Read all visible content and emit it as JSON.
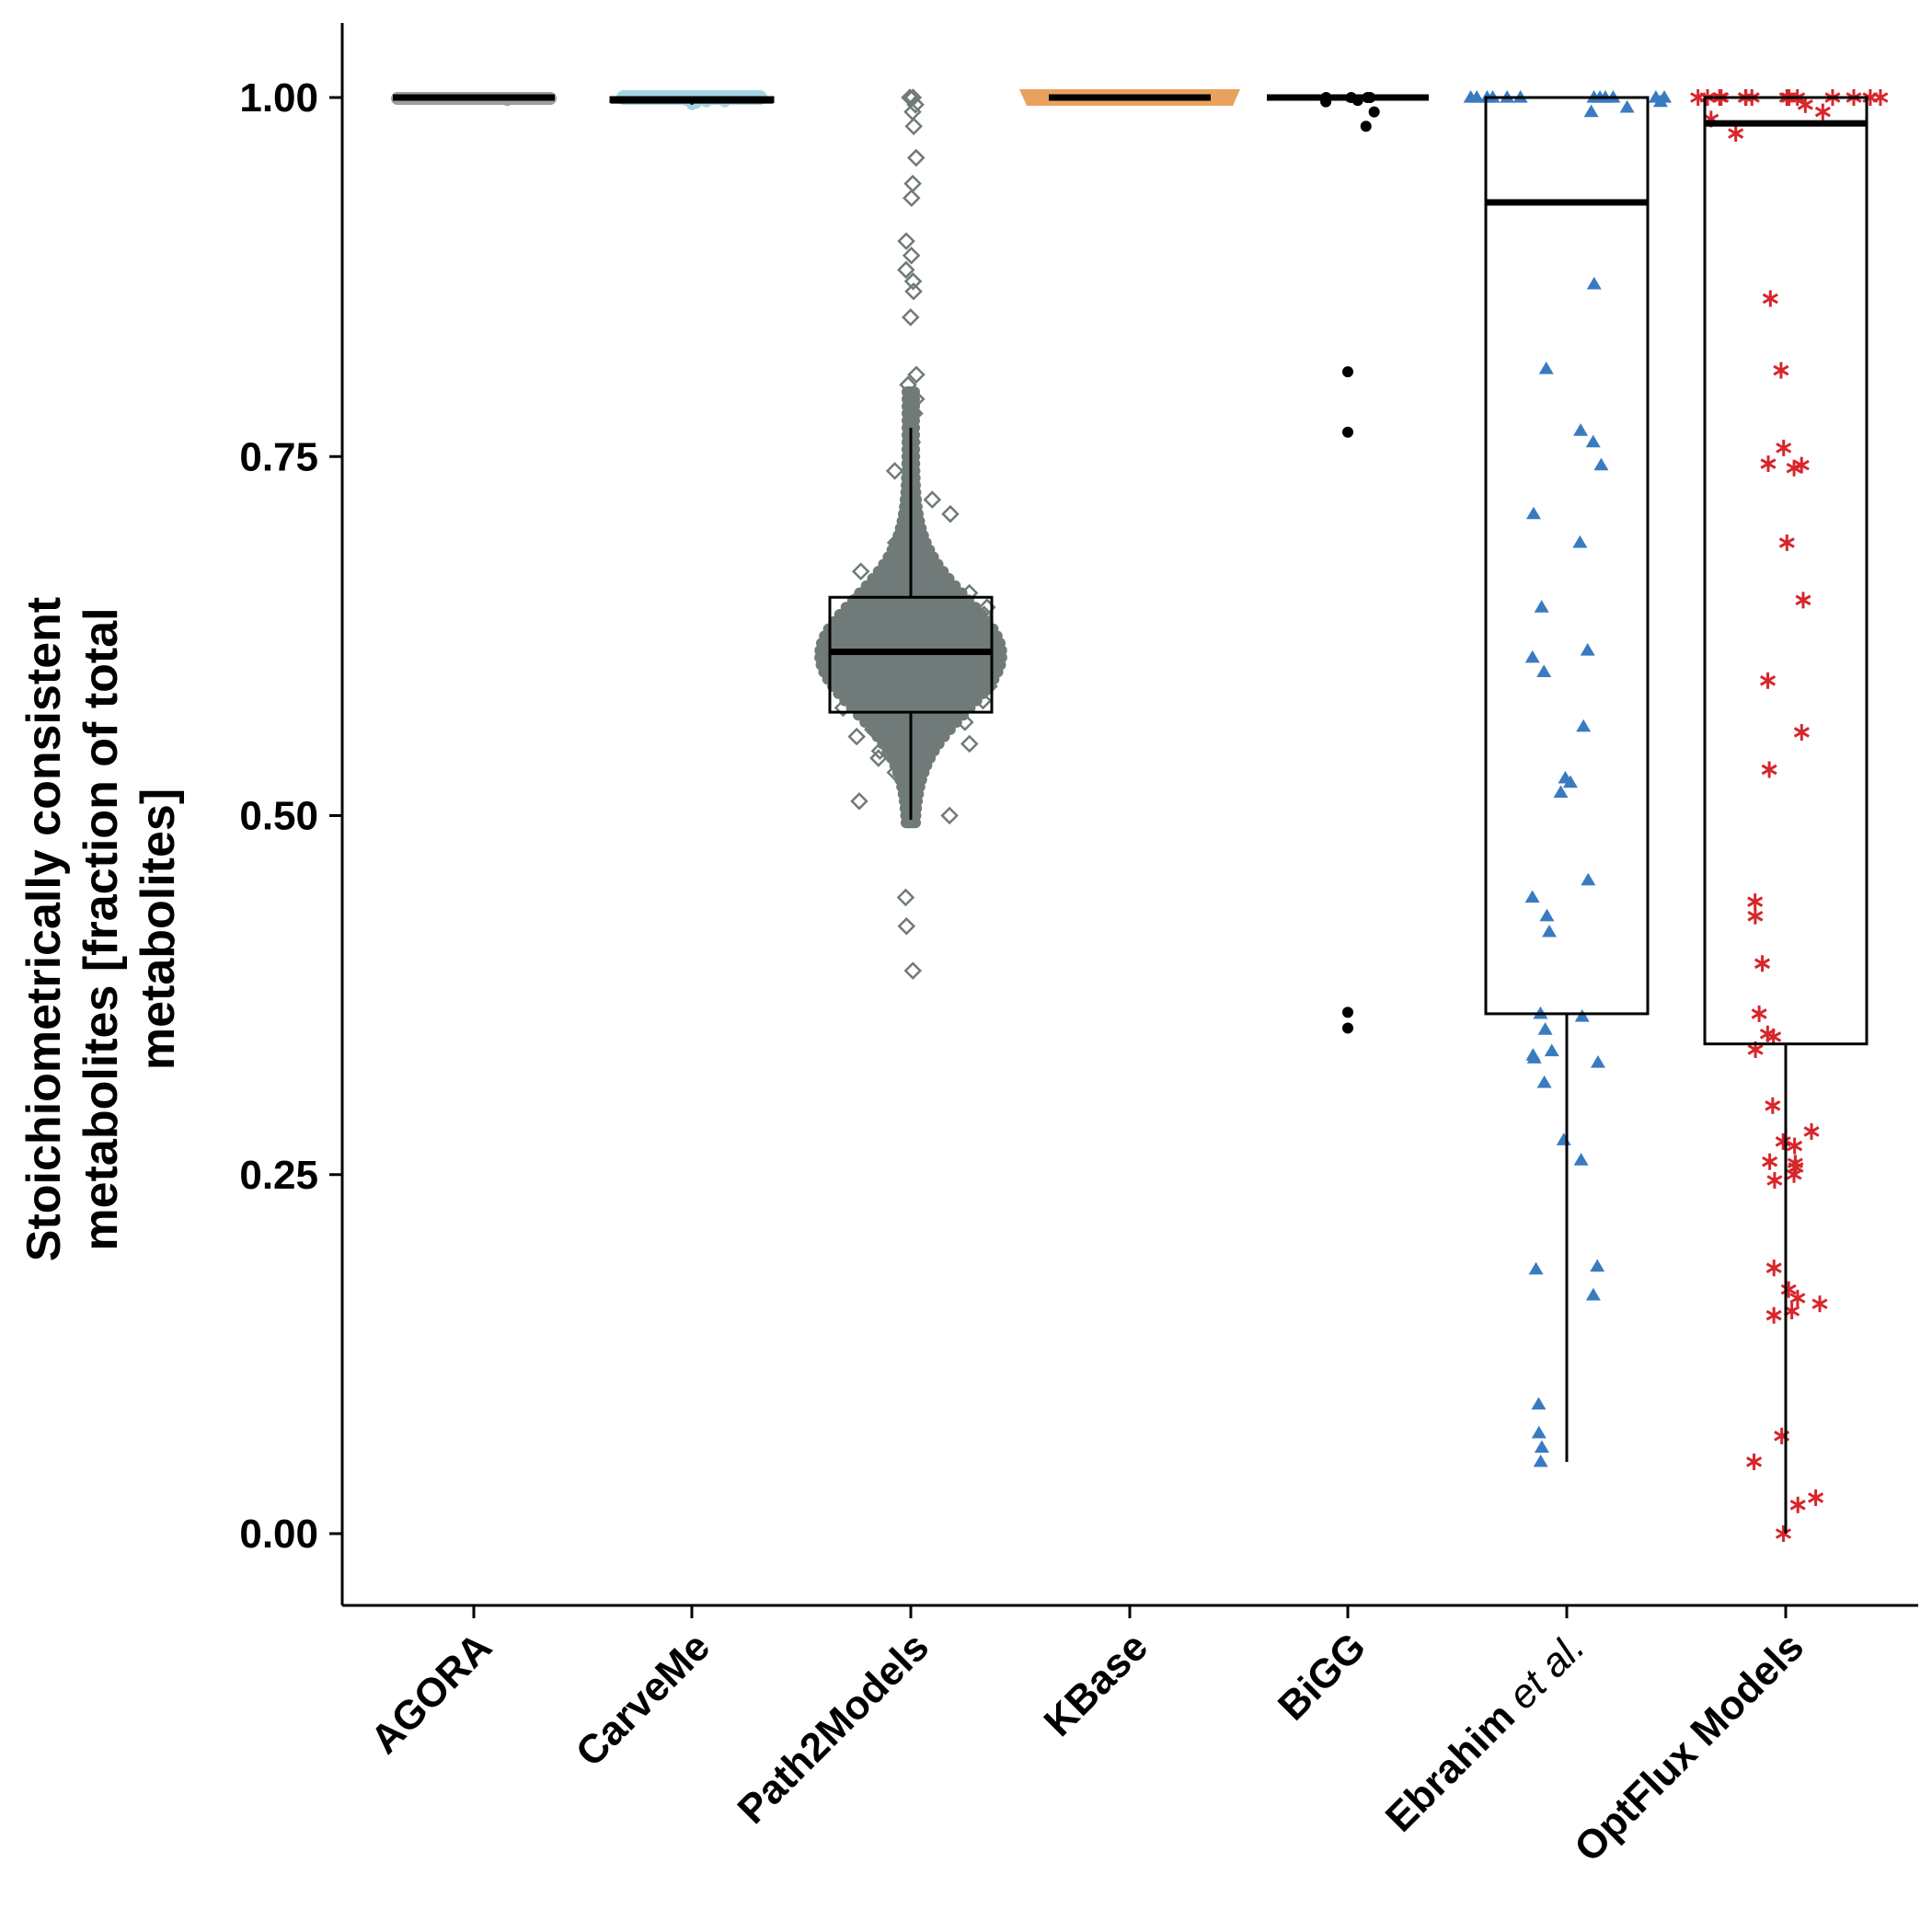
{
  "chart_data": {
    "type": "box",
    "ylabel_lines": [
      "Stoichiometrically consistent",
      "metabolites [fraction of total",
      "metabolites]"
    ],
    "ylim": [
      -0.05,
      1.05
    ],
    "yticks": [
      {
        "value": 0.0,
        "label": "0.00"
      },
      {
        "value": 0.25,
        "label": "0.25"
      },
      {
        "value": 0.5,
        "label": "0.50"
      },
      {
        "value": 0.75,
        "label": "0.75"
      },
      {
        "value": 1.0,
        "label": "1.00"
      }
    ],
    "grid": false,
    "legend": "none",
    "categories": [
      {
        "label": "AGORA"
      },
      {
        "label": "CarveMe"
      },
      {
        "label": "Path2Models"
      },
      {
        "label": "KBase"
      },
      {
        "label": "BiGG"
      },
      {
        "label": "Ebrahim",
        "label_italic": "et al."
      },
      {
        "label": "OptFlux Models"
      }
    ],
    "series": [
      {
        "category": "AGORA",
        "marker": "circle",
        "color": "#9e9e9e",
        "box": {
          "q1": 0.999,
          "median": 1.0,
          "q3": 1.0,
          "whisker_low": 0.999,
          "whisker_high": 1.0
        },
        "points": [
          1.0,
          1.0,
          1.0,
          0.999,
          1.0,
          1.0,
          0.998,
          1.0,
          1.0,
          0.999,
          1.0,
          1.0
        ]
      },
      {
        "category": "CarveMe",
        "marker": "circle",
        "color": "#a7d4e2",
        "box": {
          "q1": 0.997,
          "median": 0.998,
          "q3": 1.0,
          "whisker_low": 0.995,
          "whisker_high": 1.0
        },
        "points": [
          0.997,
          0.998,
          0.999,
          1.0,
          0.996,
          0.998,
          0.997,
          0.999,
          0.995,
          0.998
        ]
      },
      {
        "category": "Path2Models",
        "marker": "diamond",
        "color": "#707a79",
        "box": {
          "q1": 0.572,
          "median": 0.614,
          "q3": 0.652,
          "whisker_low": 0.497,
          "whisker_high": 0.77
        },
        "points": [
          0.72,
          0.71,
          0.7,
          0.69,
          0.68,
          0.67,
          0.66,
          0.655,
          0.65,
          0.645,
          0.64,
          0.635,
          0.63,
          0.625,
          0.62,
          0.615,
          0.61,
          0.605,
          0.6,
          0.595,
          0.59,
          0.585,
          0.58,
          0.575,
          0.57,
          0.565,
          0.56,
          0.555,
          0.55,
          0.545,
          0.54,
          0.53,
          0.52,
          0.51,
          0.5,
          0.74,
          0.76,
          0.78,
          0.79,
          0.8,
          0.807,
          0.872,
          0.88,
          0.89,
          0.9,
          0.847,
          0.865,
          0.93,
          0.94,
          0.958,
          0.98,
          0.99,
          1.0,
          1.0,
          0.995,
          0.443,
          0.423,
          0.392
        ]
      },
      {
        "category": "KBase",
        "marker": "triangle",
        "color": "#e8a25e",
        "box": {
          "q1": 1.0,
          "median": 1.0,
          "q3": 1.0,
          "whisker_low": 1.0,
          "whisker_high": 1.0
        },
        "points": [
          1.0,
          1.0,
          1.0,
          1.0,
          1.0,
          1.0,
          1.0,
          1.0,
          1.0,
          1.0
        ]
      },
      {
        "category": "BiGG",
        "marker": "circle",
        "color": "#000000",
        "box": {
          "q1": 1.0,
          "median": 1.0,
          "q3": 1.0,
          "whisker_low": 0.997,
          "whisker_high": 1.0
        },
        "points": [
          1.0,
          1.0,
          1.0,
          0.998,
          0.997,
          1.0,
          0.99,
          0.98,
          0.809,
          0.767,
          0.363,
          0.352
        ]
      },
      {
        "category": "Ebrahim et al.",
        "marker": "triangle",
        "color": "#3a7bc0",
        "box": {
          "q1": 0.362,
          "median": 0.927,
          "q3": 1.0,
          "whisker_low": 0.05,
          "whisker_high": 1.0
        },
        "points": [
          1.0,
          1.0,
          1.0,
          1.0,
          1.0,
          1.0,
          1.0,
          1.0,
          1.0,
          1.0,
          1.0,
          1.0,
          0.997,
          0.993,
          0.99,
          0.87,
          0.811,
          0.768,
          0.76,
          0.744,
          0.71,
          0.69,
          0.645,
          0.615,
          0.61,
          0.6,
          0.562,
          0.526,
          0.523,
          0.516,
          0.455,
          0.443,
          0.43,
          0.419,
          0.362,
          0.36,
          0.351,
          0.336,
          0.333,
          0.331,
          0.328,
          0.314,
          0.274,
          0.26,
          0.186,
          0.184,
          0.166,
          0.09,
          0.07,
          0.06,
          0.05
        ]
      },
      {
        "category": "OptFlux Models",
        "marker": "asterisk",
        "color": "#d7262b",
        "box": {
          "q1": 0.341,
          "median": 0.982,
          "q3": 1.0,
          "whisker_low": 0.0,
          "whisker_high": 1.0
        },
        "points": [
          1.0,
          1.0,
          1.0,
          1.0,
          1.0,
          1.0,
          1.0,
          1.0,
          1.0,
          1.0,
          1.0,
          1.0,
          1.0,
          1.0,
          0.995,
          0.99,
          0.985,
          0.975,
          0.86,
          0.81,
          0.756,
          0.745,
          0.744,
          0.742,
          0.69,
          0.65,
          0.594,
          0.558,
          0.532,
          0.44,
          0.43,
          0.397,
          0.362,
          0.348,
          0.346,
          0.337,
          0.298,
          0.28,
          0.273,
          0.27,
          0.259,
          0.258,
          0.255,
          0.25,
          0.246,
          0.185,
          0.17,
          0.164,
          0.16,
          0.155,
          0.152,
          0.068,
          0.05,
          0.025,
          0.02,
          0.0
        ]
      }
    ]
  }
}
